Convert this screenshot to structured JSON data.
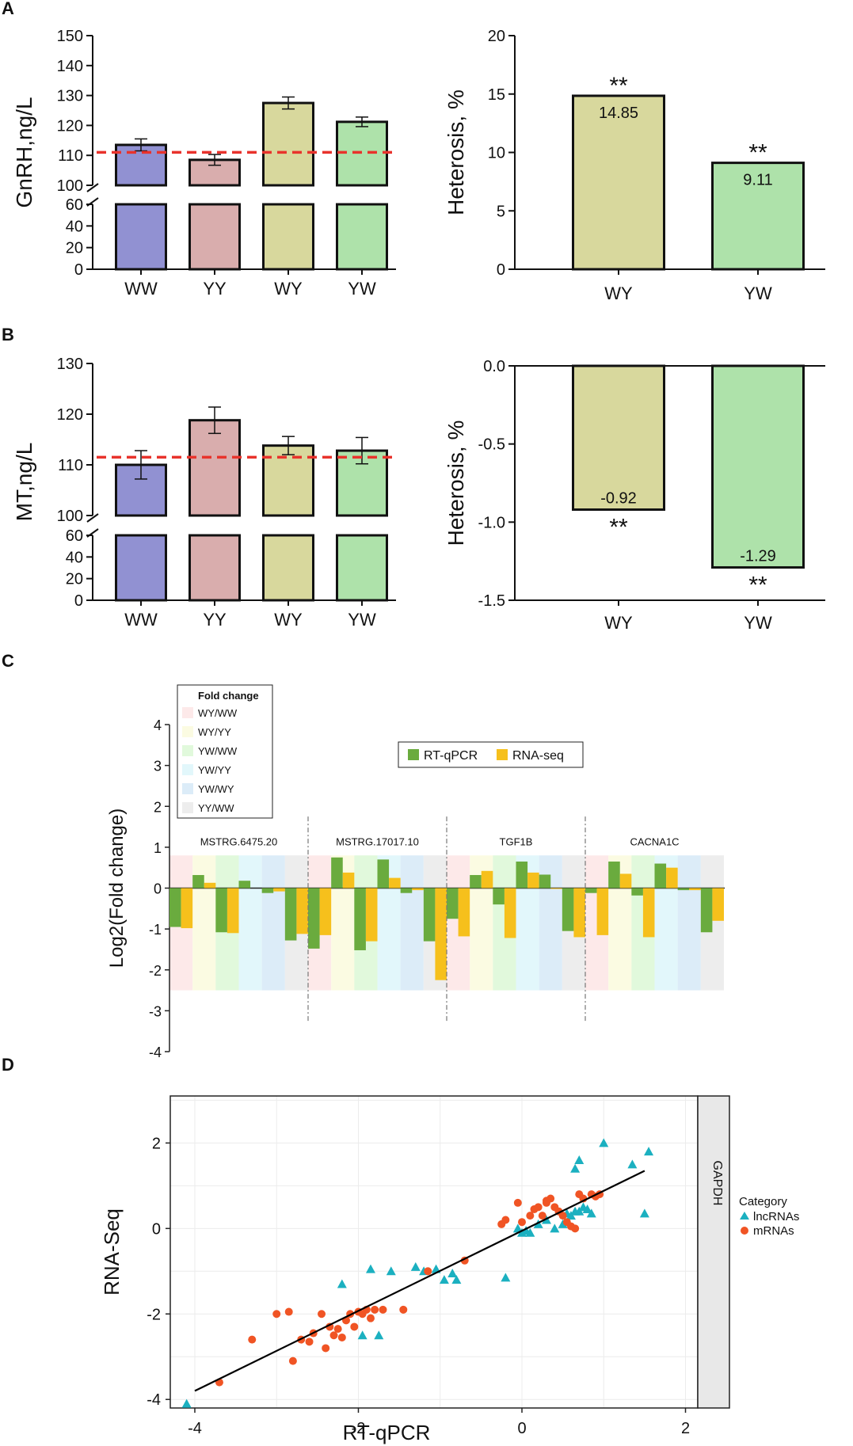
{
  "colors": {
    "ww": "#9191d2",
    "yy": "#d9adad",
    "wy": "#d8d89d",
    "yw": "#aee2aa",
    "ref_line": "#e8332c",
    "rtqpcr": "#6aab3e",
    "rnaseq": "#f6c01c",
    "lncrna": "#1bb0c0",
    "mrna": "#f05424",
    "fit": "#000000",
    "bg_wyww": "#fde9e9",
    "bg_wyyy": "#fbfbe2",
    "bg_ywww": "#e1f9dc",
    "bg_ywyy": "#e2f7fb",
    "bg_ywwy": "#dcecf8",
    "bg_yyww": "#ededed"
  },
  "panels": {
    "a": "A",
    "b": "B",
    "c": "C",
    "d": "D"
  },
  "chart_data": [
    {
      "id": "A-left",
      "type": "bar",
      "ylabel": "GnRH,ng/L",
      "categories": [
        "WW",
        "YY",
        "WY",
        "YW"
      ],
      "values": [
        113.5,
        108.5,
        127.5,
        121.2
      ],
      "errors": [
        2.0,
        1.8,
        2.0,
        1.6
      ],
      "reference_line": 111.0,
      "yticks_upper": [
        100,
        110,
        120,
        130,
        140,
        150
      ],
      "yticks_lower": [
        0,
        20,
        40,
        60
      ],
      "ylim_upper": [
        100,
        150
      ],
      "ylim_lower": [
        0,
        60
      ],
      "axis_break": true
    },
    {
      "id": "A-right",
      "type": "bar",
      "ylabel": "Heterosis, %",
      "categories": [
        "WY",
        "YW"
      ],
      "values": [
        14.85,
        9.11
      ],
      "value_labels": [
        "14.85",
        "9.11"
      ],
      "significance": [
        "**",
        "**"
      ],
      "yticks": [
        0,
        5,
        10,
        15,
        20
      ],
      "ylim": [
        0,
        20
      ]
    },
    {
      "id": "B-left",
      "type": "bar",
      "ylabel": "MT,ng/L",
      "categories": [
        "WW",
        "YY",
        "WY",
        "YW"
      ],
      "values": [
        110.0,
        118.8,
        113.8,
        112.8
      ],
      "errors": [
        2.8,
        2.6,
        1.8,
        2.6
      ],
      "reference_line": 111.5,
      "yticks_upper": [
        100,
        110,
        120,
        130
      ],
      "yticks_lower": [
        0,
        20,
        40,
        60
      ],
      "ylim_upper": [
        100,
        130
      ],
      "ylim_lower": [
        0,
        60
      ],
      "axis_break": true
    },
    {
      "id": "B-right",
      "type": "bar",
      "ylabel": "Heterosis, %",
      "categories": [
        "WY",
        "YW"
      ],
      "values": [
        -0.92,
        -1.29
      ],
      "value_labels": [
        "-0.92",
        "-1.29"
      ],
      "significance": [
        "**",
        "**"
      ],
      "yticks": [
        0.0,
        -0.5,
        -1.0,
        -1.5
      ],
      "ytick_labels": [
        "0.0",
        "-0.5",
        "-1.0",
        "-1.5"
      ],
      "ylim": [
        -1.5,
        0
      ]
    },
    {
      "id": "C",
      "type": "bar",
      "ylabel": "Log2(Fold change)",
      "ylim": [
        -4,
        4
      ],
      "yticks": [
        -4,
        -3,
        -2,
        -1,
        0,
        1,
        2,
        3,
        4
      ],
      "legend_fold_title": "Fold change",
      "comparisons": [
        "WY/WW",
        "WY/YY",
        "YW/WW",
        "YW/YY",
        "YW/WY",
        "YY/WW"
      ],
      "legend_series": [
        "RT-qPCR",
        "RNA-seq"
      ],
      "genes": [
        {
          "name": "MSTRG.6475.20",
          "rtqpcr": [
            -0.95,
            0.32,
            -1.08,
            0.18,
            -0.12,
            -1.28
          ],
          "rnaseq": [
            -0.98,
            0.13,
            -1.1,
            0.0,
            -0.08,
            -1.12
          ]
        },
        {
          "name": "MSTRG.17017.10",
          "rtqpcr": [
            -1.48,
            0.75,
            -1.52,
            0.7,
            -0.12,
            -1.3
          ],
          "rnaseq": [
            -1.15,
            0.38,
            -1.3,
            0.25,
            -0.05,
            -2.25
          ]
        },
        {
          "name": "TGF1B",
          "rtqpcr": [
            -0.75,
            0.32,
            -0.4,
            0.65,
            0.33,
            -1.05
          ],
          "rnaseq": [
            -1.18,
            0.42,
            -1.22,
            0.38,
            -0.02,
            -1.2
          ]
        },
        {
          "name": "CACNA1C",
          "rtqpcr": [
            -0.12,
            0.65,
            -0.18,
            0.6,
            -0.05,
            -1.08
          ],
          "rnaseq": [
            -1.15,
            0.35,
            -1.2,
            0.5,
            -0.05,
            -0.8
          ]
        }
      ]
    },
    {
      "id": "D",
      "type": "scatter",
      "xlabel": "RT-qPCR",
      "ylabel": "RNA-Seq",
      "xlim": [
        -4.3,
        2.15
      ],
      "ylim": [
        -4.2,
        3.1
      ],
      "xticks": [
        -4,
        -2,
        0,
        2
      ],
      "yticks": [
        -4,
        -2,
        0,
        2
      ],
      "facet_label": "GAPDH",
      "legend_title": "Category",
      "fit_line": {
        "x": [
          -4.0,
          1.5
        ],
        "y": [
          -3.8,
          1.35
        ]
      },
      "series": [
        {
          "name": "lncRNAs",
          "marker": "triangle",
          "points": [
            [
              -4.1,
              -4.1
            ],
            [
              -2.2,
              -1.3
            ],
            [
              -1.85,
              -0.95
            ],
            [
              -1.95,
              -2.5
            ],
            [
              -1.75,
              -2.5
            ],
            [
              -1.6,
              -1.0
            ],
            [
              -1.3,
              -0.9
            ],
            [
              -1.2,
              -1.0
            ],
            [
              -1.05,
              -0.95
            ],
            [
              -0.95,
              -1.2
            ],
            [
              -0.85,
              -1.05
            ],
            [
              -0.8,
              -1.2
            ],
            [
              -0.2,
              -1.15
            ],
            [
              -0.05,
              0.0
            ],
            [
              0.0,
              -0.1
            ],
            [
              0.05,
              -0.05
            ],
            [
              0.1,
              -0.1
            ],
            [
              0.2,
              0.1
            ],
            [
              0.3,
              0.2
            ],
            [
              0.4,
              0.0
            ],
            [
              0.5,
              0.1
            ],
            [
              0.55,
              0.35
            ],
            [
              0.6,
              0.3
            ],
            [
              0.65,
              0.4
            ],
            [
              0.7,
              0.4
            ],
            [
              0.75,
              0.5
            ],
            [
              0.8,
              0.45
            ],
            [
              0.85,
              0.35
            ],
            [
              0.65,
              1.4
            ],
            [
              0.7,
              1.6
            ],
            [
              1.0,
              2.0
            ],
            [
              1.35,
              1.5
            ],
            [
              1.55,
              1.8
            ],
            [
              1.5,
              0.35
            ]
          ]
        },
        {
          "name": "mRNAs",
          "marker": "circle",
          "points": [
            [
              -3.7,
              -3.6
            ],
            [
              -3.3,
              -2.6
            ],
            [
              -3.0,
              -2.0
            ],
            [
              -2.85,
              -1.95
            ],
            [
              -2.8,
              -3.1
            ],
            [
              -2.7,
              -2.6
            ],
            [
              -2.6,
              -2.65
            ],
            [
              -2.55,
              -2.45
            ],
            [
              -2.45,
              -2.0
            ],
            [
              -2.4,
              -2.8
            ],
            [
              -2.35,
              -2.3
            ],
            [
              -2.3,
              -2.5
            ],
            [
              -2.25,
              -2.35
            ],
            [
              -2.2,
              -2.55
            ],
            [
              -2.15,
              -2.15
            ],
            [
              -2.1,
              -2.0
            ],
            [
              -2.05,
              -2.3
            ],
            [
              -2.0,
              -1.95
            ],
            [
              -1.95,
              -2.0
            ],
            [
              -1.9,
              -1.9
            ],
            [
              -1.85,
              -2.1
            ],
            [
              -1.8,
              -1.9
            ],
            [
              -1.7,
              -1.9
            ],
            [
              -1.45,
              -1.9
            ],
            [
              -1.15,
              -1.0
            ],
            [
              -0.7,
              -0.75
            ],
            [
              -0.25,
              0.1
            ],
            [
              -0.2,
              0.2
            ],
            [
              -0.05,
              0.6
            ],
            [
              0.0,
              0.15
            ],
            [
              0.1,
              0.3
            ],
            [
              0.15,
              0.45
            ],
            [
              0.2,
              0.5
            ],
            [
              0.25,
              0.3
            ],
            [
              0.3,
              0.6
            ],
            [
              0.35,
              0.7
            ],
            [
              0.4,
              0.5
            ],
            [
              0.45,
              0.4
            ],
            [
              0.5,
              0.3
            ],
            [
              0.55,
              0.15
            ],
            [
              0.6,
              0.05
            ],
            [
              0.65,
              0.0
            ],
            [
              0.7,
              0.8
            ],
            [
              0.75,
              0.7
            ],
            [
              0.85,
              0.8
            ],
            [
              0.9,
              0.75
            ],
            [
              0.95,
              0.8
            ],
            [
              0.3,
              0.65
            ]
          ]
        }
      ]
    }
  ]
}
